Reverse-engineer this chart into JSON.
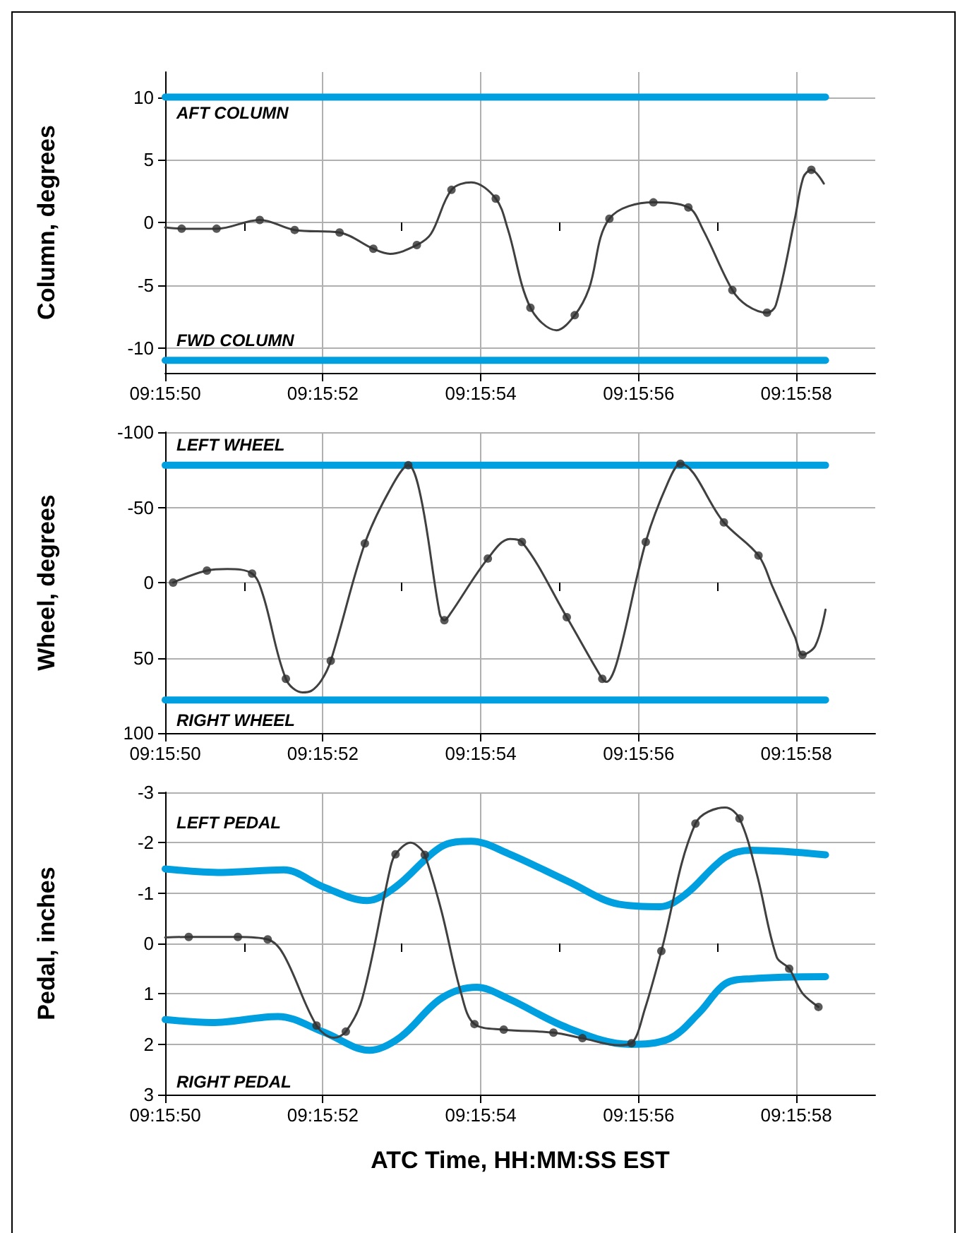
{
  "chart_data": [
    {
      "type": "line",
      "ylabel": "Column, degrees",
      "xlim": [
        9.263889,
        9.266389
      ],
      "ylim": [
        -12,
        12
      ],
      "yticks": [
        -10,
        -5,
        0,
        5,
        10
      ],
      "grid": true,
      "xticks": [
        {
          "value": 9.263889,
          "label": "09:15:50"
        },
        {
          "value": 9.264167,
          "label": null
        },
        {
          "value": 9.264444,
          "label": "09:15:52"
        },
        {
          "value": 9.264722,
          "label": null
        },
        {
          "value": 9.265,
          "label": "09:15:54"
        },
        {
          "value": 9.265278,
          "label": null
        },
        {
          "value": 9.265556,
          "label": "09:15:56"
        },
        {
          "value": 9.265833,
          "label": null
        },
        {
          "value": 9.266111,
          "label": "09:15:58"
        }
      ],
      "annotations": [
        "AFT COLUMN",
        "FWD COLUMN"
      ],
      "series": [
        {
          "color": "#00a0e0",
          "x": [
            9.263889,
            9.266214
          ],
          "values": [
            10,
            10
          ]
        },
        {
          "color": "#00a0e0",
          "x": [
            9.263889,
            9.266214
          ],
          "values": [
            -11,
            -11
          ]
        },
        {
          "color": "#404040",
          "x": [
            9.263889,
            9.263947,
            9.26407,
            9.264222,
            9.264345,
            9.264503,
            9.264622,
            9.264681,
            9.264775,
            9.264825,
            9.264897,
            9.264967,
            9.265053,
            9.265095,
            9.265175,
            9.265267,
            9.265331,
            9.265381,
            9.265453,
            9.265608,
            9.265731,
            9.265783,
            9.265886,
            9.265936,
            9.266008,
            9.266039,
            9.266106,
            9.266136,
            9.266164,
            9.266208
          ],
          "values": [
            -0.4,
            -0.5,
            -0.5,
            0.2,
            -0.6,
            -0.8,
            -2.1,
            -2.5,
            -1.8,
            -0.9,
            2.6,
            3.2,
            1.9,
            -0.5,
            -6.8,
            -8.6,
            -7.4,
            -5.3,
            0.3,
            1.6,
            1.2,
            -0.6,
            -5.4,
            -6.6,
            -7.2,
            -6.6,
            0.3,
            3.6,
            4.2,
            3.1
          ]
        },
        {
          "type": "scatter",
          "color": "#303030",
          "marker": "circle",
          "x": [
            9.263947,
            9.26407,
            9.264222,
            9.264345,
            9.264503,
            9.264622,
            9.264775,
            9.264897,
            9.265053,
            9.265175,
            9.265331,
            9.265453,
            9.265608,
            9.265731,
            9.265886,
            9.266008,
            9.266164
          ],
          "values": [
            -0.5,
            -0.5,
            0.2,
            -0.6,
            -0.8,
            -2.1,
            -1.8,
            2.6,
            1.9,
            -6.8,
            -7.4,
            0.3,
            1.6,
            1.2,
            -5.4,
            -7.2,
            4.2
          ]
        }
      ]
    },
    {
      "type": "line",
      "ylabel": "Wheel, degrees",
      "xlim": [
        9.263889,
        9.266389
      ],
      "ylim": [
        100,
        -100
      ],
      "yticks": [
        -100,
        -50,
        0,
        50,
        100
      ],
      "grid": true,
      "xticks": [
        {
          "value": 9.263889,
          "label": "09:15:50"
        },
        {
          "value": 9.264167,
          "label": null
        },
        {
          "value": 9.264444,
          "label": "09:15:52"
        },
        {
          "value": 9.264722,
          "label": null
        },
        {
          "value": 9.265,
          "label": "09:15:54"
        },
        {
          "value": 9.265278,
          "label": null
        },
        {
          "value": 9.265556,
          "label": "09:15:56"
        },
        {
          "value": 9.265833,
          "label": null
        },
        {
          "value": 9.266111,
          "label": "09:15:58"
        }
      ],
      "annotations": [
        "LEFT WHEEL",
        "RIGHT WHEEL"
      ],
      "series": [
        {
          "color": "#00a0e0",
          "x": [
            9.263889,
            9.266214
          ],
          "values": [
            -78,
            -78
          ]
        },
        {
          "color": "#00a0e0",
          "x": [
            9.263889,
            9.266214
          ],
          "values": [
            78,
            78
          ]
        },
        {
          "color": "#404040",
          "x": [
            9.263917,
            9.264036,
            9.264108,
            9.264195,
            9.264233,
            9.264314,
            9.264372,
            9.264403,
            9.264439,
            9.264472,
            9.264592,
            9.264681,
            9.264745,
            9.264789,
            9.264856,
            9.264872,
            9.264892,
            9.265025,
            9.265103,
            9.265145,
            9.265303,
            9.265428,
            9.265442,
            9.265481,
            9.265581,
            9.265658,
            9.265703,
            9.265856,
            9.265978,
            9.266028,
            9.266106,
            9.266133,
            9.266178,
            9.266214
          ],
          "values": [
            0,
            -8,
            -9,
            -6,
            8,
            64,
            73,
            72,
            65,
            52,
            -26,
            -62,
            -78,
            -57,
            21,
            25,
            21,
            -16,
            -29,
            -27,
            23,
            64,
            66,
            52,
            -27,
            -66,
            -79,
            -40,
            -18,
            3,
            36,
            48,
            42,
            18
          ]
        },
        {
          "type": "scatter",
          "color": "#303030",
          "marker": "circle",
          "x": [
            9.263917,
            9.264036,
            9.264195,
            9.264314,
            9.264472,
            9.264592,
            9.264745,
            9.264872,
            9.265025,
            9.265145,
            9.265303,
            9.265428,
            9.265581,
            9.265703,
            9.265856,
            9.265978,
            9.266133
          ],
          "values": [
            0,
            -8,
            -6,
            64,
            52,
            -26,
            -78,
            25,
            -16,
            -27,
            23,
            64,
            -27,
            -79,
            -40,
            -18,
            48
          ]
        }
      ]
    },
    {
      "type": "line",
      "ylabel": "Pedal, inches",
      "xlabel": "ATC Time, HH:MM:SS EST",
      "xlim": [
        9.263889,
        9.266389
      ],
      "ylim": [
        3,
        -3
      ],
      "yticks": [
        -3,
        -2,
        -1,
        0,
        1,
        2,
        3
      ],
      "grid": true,
      "xticks": [
        {
          "value": 9.263889,
          "label": "09:15:50"
        },
        {
          "value": 9.264167,
          "label": null
        },
        {
          "value": 9.264444,
          "label": "09:15:52"
        },
        {
          "value": 9.264722,
          "label": null
        },
        {
          "value": 9.265,
          "label": "09:15:54"
        },
        {
          "value": 9.265278,
          "label": null
        },
        {
          "value": 9.265556,
          "label": "09:15:56"
        },
        {
          "value": 9.265833,
          "label": null
        },
        {
          "value": 9.266111,
          "label": "09:15:58"
        }
      ],
      "annotations": [
        "LEFT PEDAL",
        "RIGHT PEDAL"
      ],
      "series": [
        {
          "color": "#00a0e0",
          "x": [
            9.263889,
            9.264089,
            9.264306,
            9.264447,
            9.2646,
            9.2647,
            9.264861,
            9.264967,
            9.265095,
            9.265308,
            9.265486,
            9.265631,
            9.26572,
            9.265861,
            9.265953,
            9.266214
          ],
          "values": [
            -1.48,
            -1.41,
            -1.46,
            -1.12,
            -0.85,
            -1.12,
            -1.92,
            -2.03,
            -1.79,
            -1.23,
            -0.78,
            -0.73,
            -0.97,
            -1.71,
            -1.85,
            -1.76
          ]
        },
        {
          "color": "#00a0e0",
          "x": [
            9.263889,
            9.264053,
            9.264286,
            9.264447,
            9.264608,
            9.264717,
            9.264861,
            9.264986,
            9.265095,
            9.265308,
            9.265522,
            9.265664,
            9.26577,
            9.265861,
            9.265953,
            9.266214
          ],
          "values": [
            1.51,
            1.57,
            1.45,
            1.76,
            2.12,
            1.86,
            1.09,
            0.87,
            1.09,
            1.68,
            2.0,
            1.89,
            1.37,
            0.8,
            0.7,
            0.66
          ]
        },
        {
          "color": "#404040",
          "x": [
            9.263889,
            9.263972,
            9.264145,
            9.26425,
            9.264306,
            9.264422,
            9.264483,
            9.264525,
            9.264583,
            9.264681,
            9.2647,
            9.264753,
            9.264781,
            9.264803,
            9.264861,
            9.264931,
            9.264978,
            9.265081,
            9.265256,
            9.265358,
            9.265486,
            9.265531,
            9.265578,
            9.265636,
            9.265756,
            9.265861,
            9.265911,
            9.265972,
            9.266042,
            9.266086,
            9.266133,
            9.266189
          ],
          "values": [
            -0.12,
            -0.13,
            -0.13,
            -0.08,
            0.22,
            1.63,
            1.87,
            1.75,
            1.09,
            -1.48,
            -1.77,
            -2.0,
            -1.92,
            -1.76,
            -0.66,
            0.99,
            1.6,
            1.71,
            1.77,
            1.88,
            2.02,
            1.98,
            1.3,
            0.15,
            -2.38,
            -2.7,
            -2.48,
            -1.38,
            0.27,
            0.5,
            0.99,
            1.26
          ]
        },
        {
          "type": "scatter",
          "color": "#303030",
          "marker": "circle",
          "x": [
            9.263972,
            9.264145,
            9.26425,
            9.264422,
            9.264525,
            9.2647,
            9.264803,
            9.264978,
            9.265081,
            9.265256,
            9.265358,
            9.265531,
            9.265636,
            9.265756,
            9.265911,
            9.266086,
            9.266189
          ],
          "values": [
            -0.13,
            -0.13,
            -0.08,
            1.63,
            1.75,
            -1.77,
            -1.76,
            1.6,
            1.71,
            1.77,
            1.88,
            1.98,
            0.15,
            -2.38,
            -2.48,
            0.5,
            1.26
          ]
        }
      ]
    }
  ]
}
